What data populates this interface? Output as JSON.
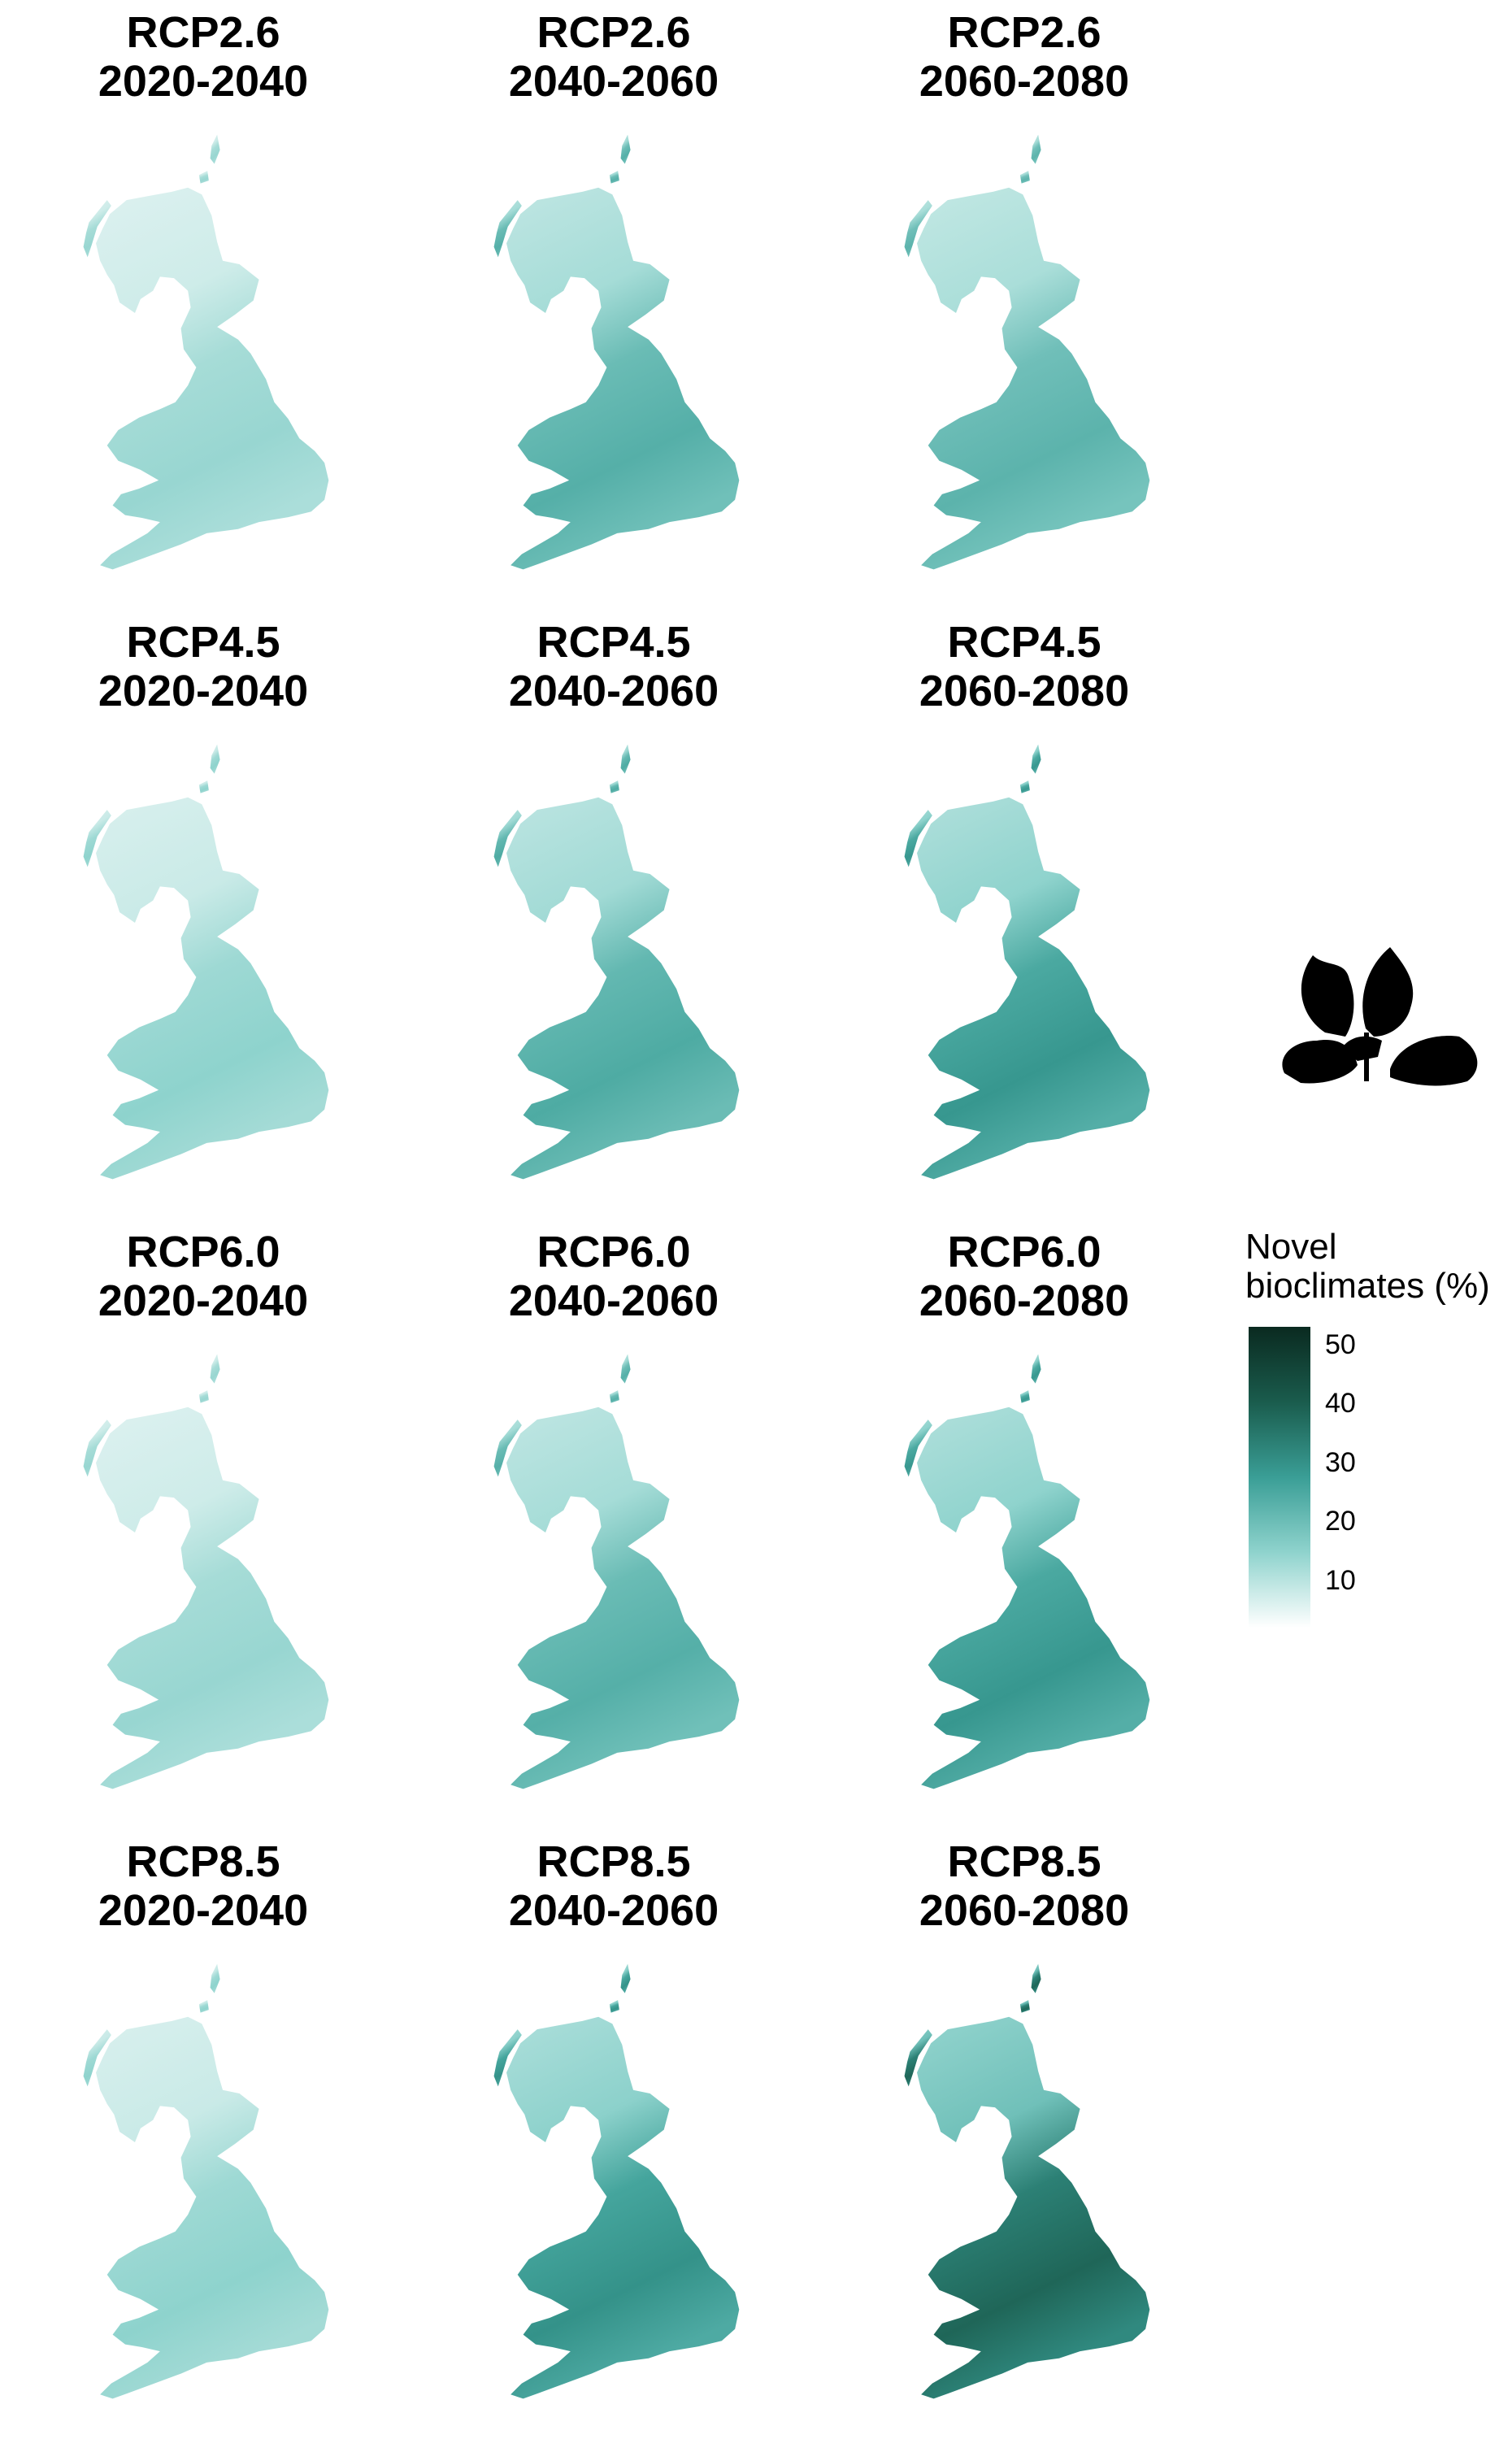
{
  "panels": [
    {
      "scenario": "RCP2.6",
      "period": "2020-2040",
      "level": 0.22
    },
    {
      "scenario": "RCP2.6",
      "period": "2040-2060",
      "level": 0.4
    },
    {
      "scenario": "RCP2.6",
      "period": "2060-2080",
      "level": 0.38
    },
    {
      "scenario": "RCP4.5",
      "period": "2020-2040",
      "level": 0.24
    },
    {
      "scenario": "RCP4.5",
      "period": "2040-2060",
      "level": 0.42
    },
    {
      "scenario": "RCP4.5",
      "period": "2060-2080",
      "level": 0.5
    },
    {
      "scenario": "RCP6.0",
      "period": "2020-2040",
      "level": 0.22
    },
    {
      "scenario": "RCP6.0",
      "period": "2040-2060",
      "level": 0.4
    },
    {
      "scenario": "RCP6.0",
      "period": "2060-2080",
      "level": 0.5
    },
    {
      "scenario": "RCP8.5",
      "period": "2020-2040",
      "level": 0.24
    },
    {
      "scenario": "RCP8.5",
      "period": "2040-2060",
      "level": 0.52
    },
    {
      "scenario": "RCP8.5",
      "period": "2060-2080",
      "level": 0.68
    }
  ],
  "legend": {
    "title_line1": "Novel",
    "title_line2": "bioclimates (%)",
    "ticks": [
      "50",
      "40",
      "30",
      "20",
      "10"
    ],
    "tick_values": [
      50,
      40,
      30,
      20,
      10
    ],
    "range": [
      2,
      53
    ],
    "colors": [
      "#ffffff",
      "#8fd3cd",
      "#3a9e96",
      "#1a5c4d",
      "#0a2a20"
    ]
  },
  "icon": "oak-leaves-icon"
}
